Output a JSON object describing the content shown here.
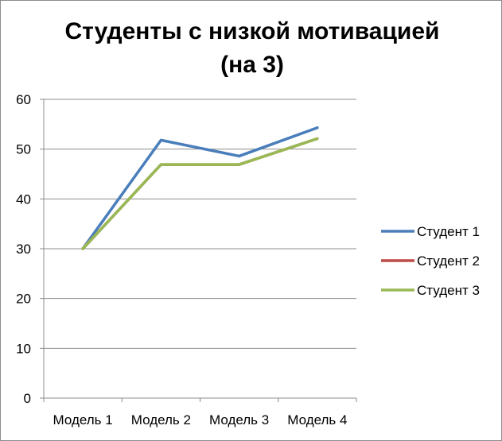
{
  "chart_data": {
    "type": "line",
    "title_lines": [
      "Студенты с низкой мотивацией",
      "(на 3)"
    ],
    "categories": [
      "Модель 1",
      "Модель 2",
      "Модель 3",
      "Модель 4"
    ],
    "series": [
      {
        "name": "Студент 1",
        "values": [
          30,
          51.8,
          48.6,
          54.3
        ],
        "color": "#4a7ebb"
      },
      {
        "name": "Студент 2",
        "values": [
          30,
          46.9,
          46.9,
          52.1
        ],
        "color": "#be4b48"
      },
      {
        "name": "Студент 3",
        "values": [
          30,
          46.9,
          46.9,
          52.1
        ],
        "color": "#98b954"
      }
    ],
    "ylim": [
      0,
      60
    ],
    "yticks": [
      0,
      10,
      20,
      30,
      40,
      50,
      60
    ],
    "grid": true,
    "legend_position": "right"
  }
}
